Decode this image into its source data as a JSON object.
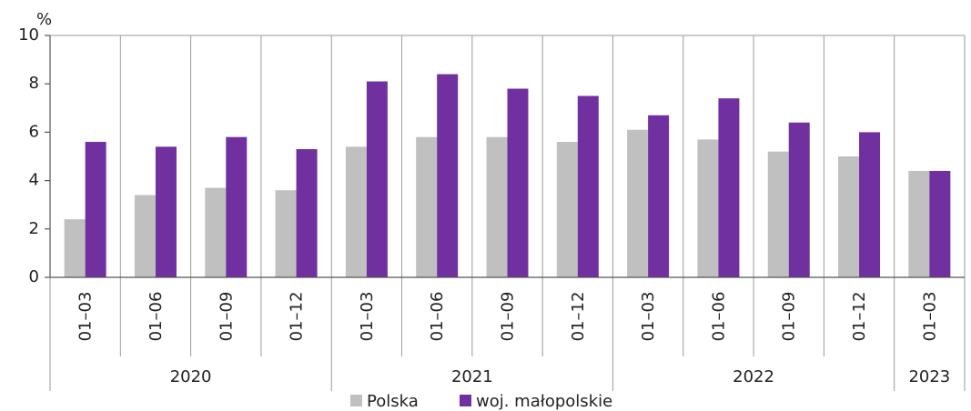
{
  "chart_data": {
    "type": "bar",
    "unit": "%",
    "groups": [
      {
        "name": "2020",
        "categories": [
          "01–03",
          "01–06",
          "01–09",
          "01–12"
        ]
      },
      {
        "name": "2021",
        "categories": [
          "01–03",
          "01–06",
          "01–09",
          "01–12"
        ]
      },
      {
        "name": "2022",
        "categories": [
          "01–03",
          "01–06",
          "01–09",
          "01–12"
        ]
      },
      {
        "name": "2023",
        "categories": [
          "01–03"
        ]
      }
    ],
    "series": [
      {
        "name": "Polska",
        "color": "#c0c0c0",
        "values": [
          2.4,
          3.4,
          3.7,
          3.6,
          5.4,
          5.8,
          5.8,
          5.6,
          6.1,
          5.7,
          5.2,
          5.0,
          4.4
        ]
      },
      {
        "name": "woj. małopolskie",
        "color": "#7030a0",
        "values": [
          5.6,
          5.4,
          5.8,
          5.3,
          8.1,
          8.4,
          7.8,
          7.5,
          6.7,
          7.4,
          6.4,
          6.0,
          4.4
        ]
      }
    ],
    "ylim": [
      0,
      10
    ],
    "yticks": [
      0,
      2,
      4,
      6,
      8,
      10
    ]
  }
}
